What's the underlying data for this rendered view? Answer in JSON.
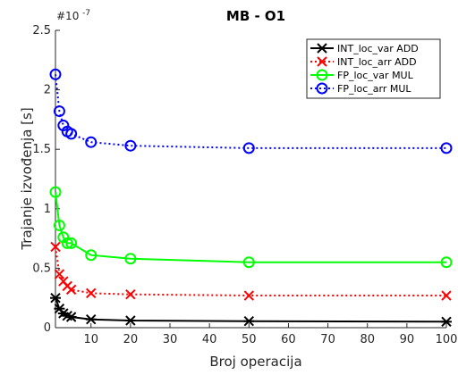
{
  "chart_data": {
    "type": "line",
    "title": "MB - O1",
    "xlabel": "Broj operacija",
    "ylabel": "Trajanje izvođenja [s]",
    "y_exponent_label": "#10",
    "y_exponent_power": "-7",
    "xlim": [
      1,
      100
    ],
    "ylim": [
      0,
      2.5
    ],
    "x_ticks": [
      10,
      20,
      30,
      40,
      50,
      60,
      70,
      80,
      90,
      100
    ],
    "x_tick_labels": [
      "10",
      "20",
      "30",
      "40",
      "50",
      "60",
      "70",
      "80",
      "90",
      "100"
    ],
    "y_ticks": [
      0,
      0.5,
      1,
      1.5,
      2,
      2.5
    ],
    "y_tick_labels": [
      "0",
      "0.5",
      "1",
      "1.5",
      "2",
      "2.5"
    ],
    "grid": false,
    "legend_position": "top-right",
    "x": [
      1,
      2,
      3,
      4,
      5,
      10,
      20,
      50,
      100
    ],
    "series": [
      {
        "name": "INT_loc_var ADD",
        "color": "#000000",
        "dash": "solid",
        "marker": "star",
        "values": [
          0.25,
          0.16,
          0.12,
          0.1,
          0.09,
          0.07,
          0.06,
          0.055,
          0.05
        ]
      },
      {
        "name": "INT_loc_arr ADD",
        "color": "#ff0000",
        "dash": "dotted",
        "marker": "x",
        "values": [
          0.68,
          0.45,
          0.39,
          0.35,
          0.32,
          0.29,
          0.28,
          0.27,
          0.27
        ]
      },
      {
        "name": "FP_loc_var MUL",
        "color": "#00ff00",
        "dash": "solid",
        "marker": "circle",
        "values": [
          1.14,
          0.86,
          0.76,
          0.71,
          0.71,
          0.61,
          0.58,
          0.55,
          0.55
        ]
      },
      {
        "name": "FP_loc_arr MUL",
        "color": "#0000ff",
        "dash": "dotted",
        "marker": "circle",
        "values": [
          2.13,
          1.82,
          1.7,
          1.65,
          1.63,
          1.56,
          1.53,
          1.51,
          1.51
        ]
      }
    ]
  }
}
